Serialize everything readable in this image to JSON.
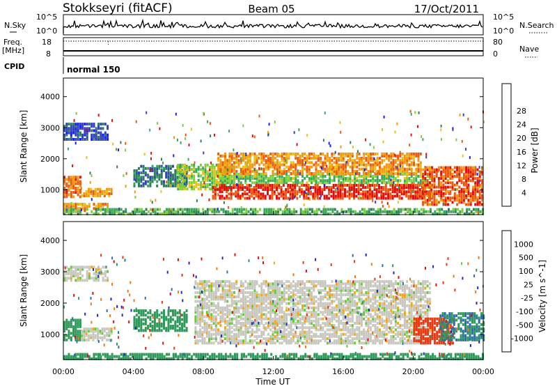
{
  "header": {
    "station": "Stokkseyri (fitACF)",
    "beam": "Beam 05",
    "date": "17/Oct/2011"
  },
  "top_panel": {
    "left_label": "N.Sky",
    "right_label": "N.Search",
    "left_ticks": [
      "10^5",
      "10^0"
    ],
    "right_ticks": [
      "10^5",
      "10^0"
    ]
  },
  "freq_panel": {
    "left_label": "Freq.",
    "left_unit": "[MHz]",
    "right_label": "Nave",
    "left_ticks": [
      "18",
      "8"
    ],
    "right_ticks": [
      "80",
      "0"
    ]
  },
  "cpid_panel": {
    "label": "CPID",
    "mode": "normal 150"
  },
  "axes": {
    "xlabel": "Time UT",
    "x_ticks": [
      "00:00",
      "04:00",
      "08:00",
      "12:00",
      "16:00",
      "20:00",
      "00:00"
    ],
    "ylabel": "Slant Range [km]",
    "y_ticks": [
      "1000",
      "2000",
      "3000",
      "4000"
    ]
  },
  "power_colorbar": {
    "label": "Power [dB]",
    "ticks": [
      "4",
      "8",
      "12",
      "16",
      "20",
      "24",
      "28"
    ],
    "colors": [
      "#1a1aff",
      "#3344bb",
      "#2f7f5f",
      "#3aa85a",
      "#7fd03a",
      "#e8c21a",
      "#f29a10",
      "#ec5b12",
      "#e01010"
    ]
  },
  "velocity_colorbar": {
    "label": "Velocity [m s^-1]",
    "ticks": [
      "1000",
      "500",
      "100",
      "25",
      "-25",
      "-100",
      "-500",
      "-1000"
    ],
    "colors": [
      "#1a28c8",
      "#2a6fb0",
      "#2f9a5a",
      "#5fcf35",
      "#c8c8c0",
      "#f3a81c",
      "#f07a10",
      "#ea3a12",
      "#e00e0e"
    ]
  },
  "chart_data": [
    {
      "type": "heatmap",
      "title": "Power",
      "xlabel": "Time UT",
      "ylabel": "Slant Range [km]",
      "xlim": [
        0,
        24
      ],
      "ylim": [
        200,
        4600
      ],
      "x_unit": "hours UT",
      "bands": [
        {
          "t0": 0.0,
          "t1": 2.5,
          "r0": 2600,
          "r1": 3150,
          "value": 5
        },
        {
          "t0": 0.0,
          "t1": 2.5,
          "r0": 300,
          "r1": 550,
          "value": 22
        },
        {
          "t0": 0.0,
          "t1": 1.0,
          "r0": 750,
          "r1": 1400,
          "value": 24
        },
        {
          "t0": 1.0,
          "t1": 2.7,
          "r0": 780,
          "r1": 1050,
          "value": 21
        },
        {
          "t0": 4.0,
          "t1": 7.0,
          "r0": 1100,
          "r1": 1800,
          "value": 8
        },
        {
          "t0": 6.5,
          "t1": 9.5,
          "r0": 1000,
          "r1": 1800,
          "value": 15
        },
        {
          "t0": 8.5,
          "t1": 21.0,
          "r0": 700,
          "r1": 1150,
          "value": 27
        },
        {
          "t0": 8.8,
          "t1": 21.0,
          "r0": 1200,
          "r1": 1500,
          "value": 14
        },
        {
          "t0": 8.8,
          "t1": 20.5,
          "r0": 1500,
          "r1": 2200,
          "value": 22
        },
        {
          "t0": 20.5,
          "t1": 24.0,
          "r0": 500,
          "r1": 1700,
          "value": 25
        },
        {
          "t0": 0.0,
          "t1": 24.0,
          "r0": 200,
          "r1": 360,
          "value": 12
        }
      ]
    },
    {
      "type": "heatmap",
      "title": "Velocity",
      "xlabel": "Time UT",
      "ylabel": "Slant Range [km]",
      "xlim": [
        0,
        24
      ],
      "ylim": [
        200,
        4600
      ],
      "x_unit": "hours UT",
      "bands": [
        {
          "t0": 0.0,
          "t1": 2.5,
          "r0": 2700,
          "r1": 3150,
          "value": 0
        },
        {
          "t0": 0.0,
          "t1": 1.0,
          "r0": 800,
          "r1": 1500,
          "value": 120
        },
        {
          "t0": 1.0,
          "t1": 2.7,
          "r0": 800,
          "r1": 1200,
          "value": 0
        },
        {
          "t0": 4.0,
          "t1": 7.0,
          "r0": 1100,
          "r1": 1800,
          "value": 200
        },
        {
          "t0": 7.5,
          "t1": 21.0,
          "r0": 700,
          "r1": 2700,
          "value": 0
        },
        {
          "t0": 20.0,
          "t1": 22.3,
          "r0": 700,
          "r1": 1500,
          "value": -700
        },
        {
          "t0": 21.5,
          "t1": 24.0,
          "r0": 800,
          "r1": 1700,
          "value": 300
        },
        {
          "t0": 0.0,
          "t1": 24.0,
          "r0": 200,
          "r1": 360,
          "value": 100
        }
      ]
    }
  ]
}
